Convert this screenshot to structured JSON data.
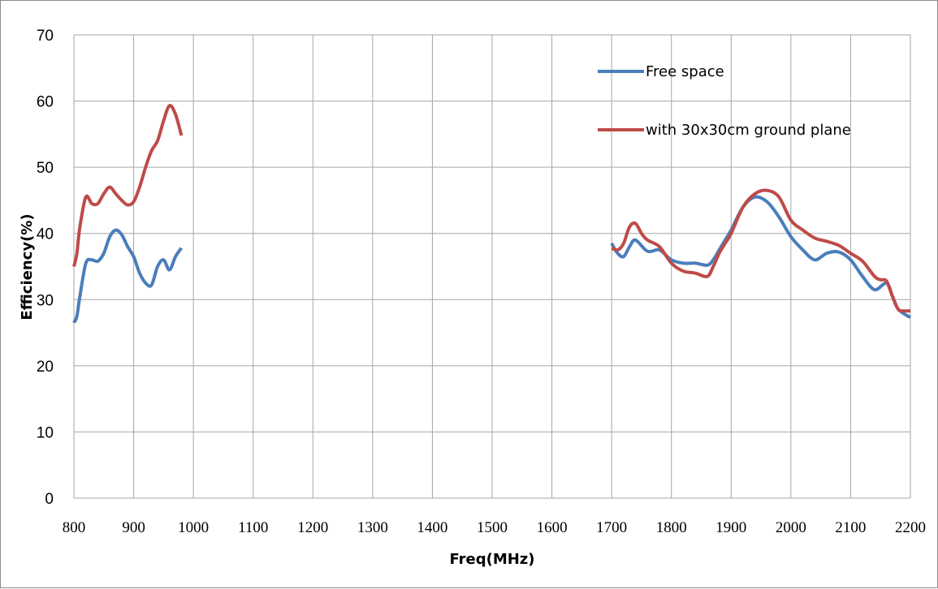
{
  "chart_data": {
    "type": "line",
    "title": "",
    "xlabel": "Freq(MHz)",
    "ylabel": "Efficiency(%)",
    "xlim": [
      800,
      2200
    ],
    "ylim": [
      0,
      70
    ],
    "x_ticks": [
      800,
      900,
      1000,
      1100,
      1200,
      1300,
      1400,
      1500,
      1600,
      1700,
      1800,
      1900,
      2000,
      2100,
      2200
    ],
    "y_ticks": [
      0,
      10,
      20,
      30,
      40,
      50,
      60,
      70
    ],
    "grid": true,
    "legend_position": "top-right",
    "series": [
      {
        "name": "Free space",
        "color": "#4a7ebb",
        "segments": [
          [
            [
              800,
              26.5
            ],
            [
              805,
              27.5
            ],
            [
              810,
              30.5
            ],
            [
              820,
              35.5
            ],
            [
              830,
              36
            ],
            [
              840,
              35.8
            ],
            [
              850,
              37
            ],
            [
              860,
              39.5
            ],
            [
              870,
              40.5
            ],
            [
              880,
              39.8
            ],
            [
              890,
              38
            ],
            [
              900,
              36.5
            ],
            [
              910,
              34
            ],
            [
              920,
              32.5
            ],
            [
              930,
              32.2
            ],
            [
              940,
              35
            ],
            [
              950,
              36
            ],
            [
              960,
              34.5
            ],
            [
              970,
              36.5
            ],
            [
              980,
              37.8
            ]
          ],
          [
            [
              1700,
              38.5
            ],
            [
              1710,
              37
            ],
            [
              1720,
              36.5
            ],
            [
              1730,
              38
            ],
            [
              1740,
              39
            ],
            [
              1760,
              37.3
            ],
            [
              1780,
              37.5
            ],
            [
              1800,
              36
            ],
            [
              1820,
              35.5
            ],
            [
              1840,
              35.5
            ],
            [
              1860,
              35.2
            ],
            [
              1870,
              36
            ],
            [
              1880,
              37.5
            ],
            [
              1890,
              39
            ],
            [
              1900,
              40.5
            ],
            [
              1920,
              44
            ],
            [
              1940,
              45.5
            ],
            [
              1960,
              44.8
            ],
            [
              1980,
              42.5
            ],
            [
              2000,
              39.5
            ],
            [
              2020,
              37.5
            ],
            [
              2040,
              36
            ],
            [
              2060,
              37
            ],
            [
              2080,
              37.2
            ],
            [
              2100,
              36
            ],
            [
              2120,
              33.5
            ],
            [
              2140,
              31.5
            ],
            [
              2160,
              32.5
            ],
            [
              2170,
              30.5
            ],
            [
              2180,
              28.5
            ],
            [
              2200,
              27.3
            ]
          ]
        ]
      },
      {
        "name": "with 30x30cm ground plane",
        "color": "#be4b48",
        "segments": [
          [
            [
              800,
              35
            ],
            [
              805,
              37
            ],
            [
              810,
              41
            ],
            [
              820,
              45.5
            ],
            [
              830,
              44.5
            ],
            [
              840,
              44.5
            ],
            [
              850,
              46
            ],
            [
              860,
              47
            ],
            [
              870,
              46
            ],
            [
              880,
              45
            ],
            [
              890,
              44.3
            ],
            [
              900,
              44.8
            ],
            [
              910,
              47
            ],
            [
              920,
              50
            ],
            [
              930,
              52.5
            ],
            [
              940,
              54
            ],
            [
              950,
              57
            ],
            [
              960,
              59.3
            ],
            [
              970,
              58
            ],
            [
              980,
              54.8
            ]
          ],
          [
            [
              1700,
              37.8
            ],
            [
              1710,
              37.5
            ],
            [
              1720,
              38.5
            ],
            [
              1730,
              41
            ],
            [
              1740,
              41.5
            ],
            [
              1750,
              40
            ],
            [
              1760,
              39
            ],
            [
              1780,
              38
            ],
            [
              1800,
              35.5
            ],
            [
              1820,
              34.3
            ],
            [
              1840,
              34
            ],
            [
              1860,
              33.5
            ],
            [
              1870,
              35
            ],
            [
              1880,
              37
            ],
            [
              1890,
              38.5
            ],
            [
              1900,
              40
            ],
            [
              1920,
              44
            ],
            [
              1940,
              46
            ],
            [
              1960,
              46.5
            ],
            [
              1980,
              45.5
            ],
            [
              2000,
              42
            ],
            [
              2020,
              40.5
            ],
            [
              2040,
              39.3
            ],
            [
              2060,
              38.8
            ],
            [
              2080,
              38.2
            ],
            [
              2100,
              37
            ],
            [
              2120,
              35.8
            ],
            [
              2140,
              33.5
            ],
            [
              2150,
              33
            ],
            [
              2160,
              32.8
            ],
            [
              2170,
              30.5
            ],
            [
              2180,
              28.5
            ],
            [
              2190,
              28.3
            ],
            [
              2200,
              28.3
            ]
          ]
        ]
      }
    ]
  }
}
